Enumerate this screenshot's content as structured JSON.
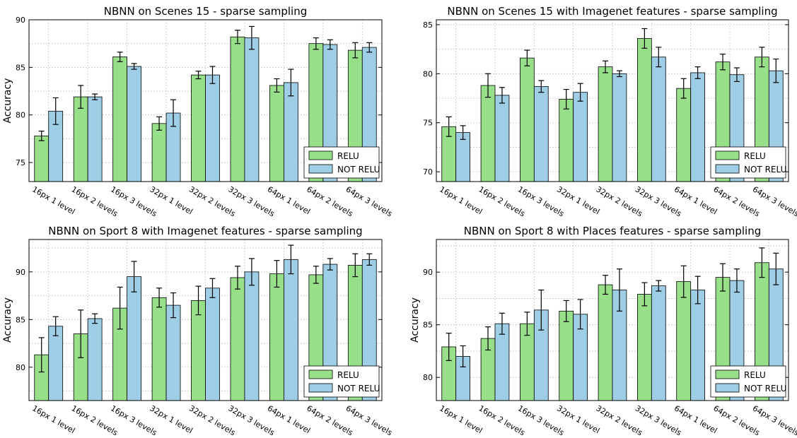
{
  "figure": {
    "ylabel": "Accuracy",
    "categories": [
      "16px 1 level",
      "16px 2 levels",
      "16px 3 levels",
      "32px 1 level",
      "32px 2 levels",
      "32px 3 levels",
      "64px 1 level",
      "64px 2 levels",
      "64px 3 levels"
    ],
    "colors": {
      "RELU": "#98df8a",
      "NOT RELU": "#9ecde6"
    }
  },
  "chart_data": [
    {
      "type": "bar",
      "title": "NBNN on Scenes 15 - sparse sampling",
      "ylabel": "Accuracy",
      "categories": [
        "16px 1 level",
        "16px 2 levels",
        "16px 3 levels",
        "32px 1 level",
        "32px 2 levels",
        "32px 3 levels",
        "64px 1 level",
        "64px 2 levels",
        "64px 3 levels"
      ],
      "ylim": [
        73,
        90
      ],
      "yticks": [
        75,
        80,
        85,
        90
      ],
      "grid": true,
      "legend_position": "bottom-right",
      "series": [
        {
          "name": "RELU",
          "color": "#98df8a",
          "values": [
            77.8,
            81.9,
            86.1,
            79.1,
            84.2,
            88.2,
            83.1,
            87.5,
            86.8
          ],
          "errors": [
            0.5,
            1.2,
            0.5,
            0.7,
            0.4,
            0.7,
            0.7,
            0.6,
            0.8
          ]
        },
        {
          "name": "NOT RELU",
          "color": "#9ecde6",
          "values": [
            80.4,
            81.9,
            85.1,
            80.2,
            84.2,
            88.1,
            83.4,
            87.4,
            87.1
          ],
          "errors": [
            1.4,
            0.3,
            0.3,
            1.4,
            0.9,
            1.2,
            1.4,
            0.5,
            0.5
          ]
        }
      ]
    },
    {
      "type": "bar",
      "title": "NBNN on Scenes 15 with Imagenet features - sparse sampling",
      "ylabel": "",
      "categories": [
        "16px 1 level",
        "16px 2 levels",
        "16px 3 levels",
        "32px 1 level",
        "32px 2 levels",
        "32px 3 levels",
        "64px 1 level",
        "64px 2 levels",
        "64px 3 levels"
      ],
      "ylim": [
        69,
        85.5
      ],
      "yticks": [
        70,
        75,
        80,
        85
      ],
      "grid": true,
      "legend_position": "bottom-right",
      "series": [
        {
          "name": "RELU",
          "color": "#98df8a",
          "values": [
            74.6,
            78.8,
            81.6,
            77.4,
            80.7,
            83.6,
            78.5,
            81.2,
            81.7
          ],
          "errors": [
            1.0,
            1.2,
            0.8,
            1.0,
            0.6,
            1.0,
            1.0,
            0.8,
            1.0
          ]
        },
        {
          "name": "NOT RELU",
          "color": "#9ecde6",
          "values": [
            74.0,
            77.8,
            78.7,
            78.1,
            80.0,
            81.7,
            80.1,
            79.9,
            80.3
          ],
          "errors": [
            0.7,
            0.8,
            0.6,
            0.9,
            0.3,
            1.0,
            0.6,
            0.7,
            1.2
          ]
        }
      ]
    },
    {
      "type": "bar",
      "title": "NBNN on Sport 8 with Imagenet features - sparse sampling",
      "ylabel": "Accuracy",
      "categories": [
        "16px 1 level",
        "16px 2 levels",
        "16px 3 levels",
        "32px 1 level",
        "32px 2 levels",
        "32px 3 levels",
        "64px 1 level",
        "64px 2 levels",
        "64px 3 levels"
      ],
      "ylim": [
        76.5,
        93.4
      ],
      "yticks": [
        80,
        85,
        90
      ],
      "grid": true,
      "legend_position": "bottom-right",
      "series": [
        {
          "name": "RELU",
          "color": "#98df8a",
          "values": [
            81.3,
            83.5,
            86.2,
            87.3,
            87.0,
            89.4,
            89.8,
            89.7,
            90.7
          ],
          "errors": [
            1.8,
            2.5,
            2.2,
            1.0,
            1.5,
            1.2,
            1.4,
            0.9,
            1.2
          ]
        },
        {
          "name": "NOT RELU",
          "color": "#9ecde6",
          "values": [
            84.3,
            85.1,
            89.5,
            86.5,
            88.3,
            90.0,
            91.3,
            90.8,
            91.3
          ],
          "errors": [
            1.0,
            0.5,
            1.6,
            1.3,
            1.0,
            1.4,
            1.5,
            0.6,
            0.6
          ]
        }
      ]
    },
    {
      "type": "bar",
      "title": "NBNN on Sport 8 with Places features - sparse sampling",
      "ylabel": "Accuracy",
      "categories": [
        "16px 1 level",
        "16px 2 levels",
        "16px 3 levels",
        "32px 1 level",
        "32px 2 levels",
        "32px 3 levels",
        "64px 1 level",
        "64px 2 levels",
        "64px 3 levels"
      ],
      "ylim": [
        77.8,
        93.1
      ],
      "yticks": [
        80,
        85,
        90
      ],
      "grid": true,
      "legend_position": "bottom-right",
      "series": [
        {
          "name": "RELU",
          "color": "#98df8a",
          "values": [
            82.9,
            83.7,
            85.1,
            86.3,
            88.8,
            87.9,
            89.1,
            89.5,
            90.9
          ],
          "errors": [
            1.3,
            1.1,
            1.1,
            1.0,
            0.9,
            1.1,
            1.5,
            1.3,
            1.4
          ]
        },
        {
          "name": "NOT RELU",
          "color": "#9ecde6",
          "values": [
            82.0,
            85.1,
            86.4,
            86.0,
            88.3,
            88.7,
            88.3,
            89.2,
            90.3
          ],
          "errors": [
            1.0,
            1.0,
            1.9,
            1.4,
            2.0,
            0.5,
            1.3,
            1.1,
            1.5
          ]
        }
      ]
    }
  ]
}
